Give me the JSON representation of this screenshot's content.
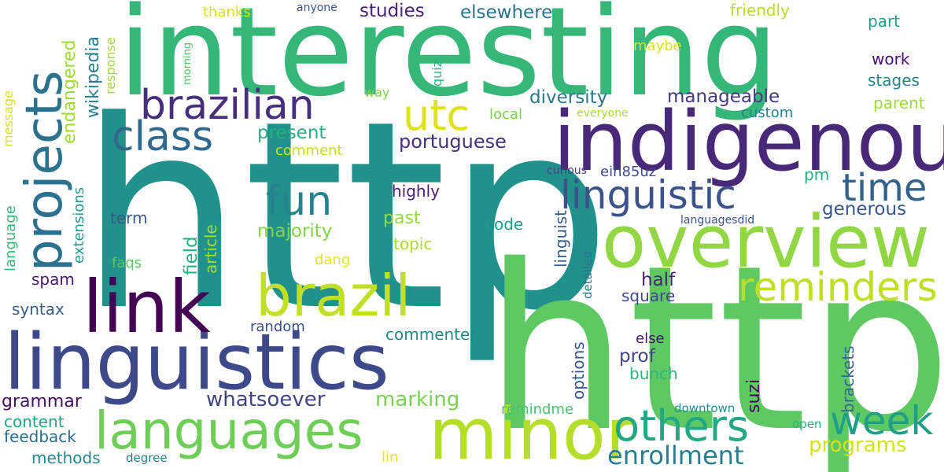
{
  "words": [
    {
      "text": "http",
      "color": "#21918c"
    },
    {
      "text": "https",
      "color": "#5ec962"
    },
    {
      "text": "interesting",
      "color": "#35b779"
    },
    {
      "text": "indigenous",
      "color": "#482878"
    },
    {
      "text": "linguistics",
      "color": "#3e4989"
    },
    {
      "text": "overview",
      "color": "#90d743"
    },
    {
      "text": "minor",
      "color": "#b5de2b"
    },
    {
      "text": "link",
      "color": "#440154"
    },
    {
      "text": "languages",
      "color": "#6ece58"
    },
    {
      "text": "brazil",
      "color": "#c2df23"
    },
    {
      "text": "projects",
      "color": "#2c728e"
    },
    {
      "text": "brazilian",
      "color": "#472f7d"
    },
    {
      "text": "others",
      "color": "#22a884"
    },
    {
      "text": "week",
      "color": "#1f9e89"
    },
    {
      "text": "reminders",
      "color": "#bddf26"
    },
    {
      "text": "class",
      "color": "#31688e"
    },
    {
      "text": "utc",
      "color": "#dde318"
    },
    {
      "text": "linguistic",
      "color": "#3b528b"
    },
    {
      "text": "time",
      "color": "#33638d"
    },
    {
      "text": "fun",
      "color": "#26828e"
    },
    {
      "text": "enrollment",
      "color": "#277f8e"
    },
    {
      "text": "programs",
      "color": "#d2e21b"
    },
    {
      "text": "whatsoever",
      "color": "#414487"
    },
    {
      "text": "marking",
      "color": "#7ad151"
    },
    {
      "text": "diversity",
      "color": "#2a788e"
    },
    {
      "text": "manageable",
      "color": "#443983"
    },
    {
      "text": "portuguese",
      "color": "#46327e"
    },
    {
      "text": "present",
      "color": "#29af7f"
    },
    {
      "text": "studies",
      "color": "#482475"
    },
    {
      "text": "elsewhere",
      "color": "#2d708e"
    },
    {
      "text": "wikipedia",
      "color": "#287c8e"
    },
    {
      "text": "endangered",
      "color": "#9fda3a"
    },
    {
      "text": "generous",
      "color": "#39568c"
    },
    {
      "text": "majority",
      "color": "#84d44b"
    },
    {
      "text": "half",
      "color": "#482173"
    },
    {
      "text": "square",
      "color": "#3f4788"
    },
    {
      "text": "linguist",
      "color": "#365d8d"
    },
    {
      "text": "commenter",
      "color": "#23888e"
    },
    {
      "text": "grammar",
      "color": "#471063"
    },
    {
      "text": "content",
      "color": "#20a386"
    },
    {
      "text": "feedback",
      "color": "#2e6e8e"
    },
    {
      "text": "methods",
      "color": "#25848e"
    },
    {
      "text": "syntax",
      "color": "#355f8d"
    },
    {
      "text": "spam",
      "color": "#481a6c"
    },
    {
      "text": "prof",
      "color": "#404688"
    },
    {
      "text": "suzi",
      "color": "#450457"
    },
    {
      "text": "bunch",
      "color": "#2fb47c"
    },
    {
      "text": "options",
      "color": "#3a548c"
    },
    {
      "text": "brackets",
      "color": "#31668e"
    },
    {
      "text": "term",
      "color": "#38598c"
    },
    {
      "text": "field",
      "color": "#2ab07f"
    },
    {
      "text": "article",
      "color": "#a8db34"
    },
    {
      "text": "past",
      "color": "#95d840"
    },
    {
      "text": "topic",
      "color": "#addc30"
    },
    {
      "text": "code",
      "color": "#1e9b8a"
    },
    {
      "text": "highly",
      "color": "#482071"
    },
    {
      "text": "work",
      "color": "#440f76"
    },
    {
      "text": "stages",
      "color": "#25858e"
    },
    {
      "text": "part",
      "color": "#1fa187"
    },
    {
      "text": "parent",
      "color": "#a0da39"
    },
    {
      "text": "custom",
      "color": "#26828e"
    },
    {
      "text": "local",
      "color": "#7cd250"
    },
    {
      "text": "comment",
      "color": "#c8e020"
    },
    {
      "text": "random",
      "color": "#3d4e8a"
    },
    {
      "text": "dang",
      "color": "#e5e419"
    },
    {
      "text": "faqs",
      "color": "#5cc863"
    },
    {
      "text": "extensions",
      "color": "#1f9a8a"
    },
    {
      "text": "language",
      "color": "#37b878"
    },
    {
      "text": "message",
      "color": "#d8e219"
    },
    {
      "text": "response",
      "color": "#a5db36"
    },
    {
      "text": "morning",
      "color": "#52c569"
    },
    {
      "text": "quiz",
      "color": "#2db27d"
    },
    {
      "text": "thanks",
      "color": "#d5e21a"
    },
    {
      "text": "anyone",
      "color": "#3b528b"
    },
    {
      "text": "friendly",
      "color": "#b8de29"
    },
    {
      "text": "maybe",
      "color": "#dae319"
    },
    {
      "text": "way",
      "color": "#7fd34e"
    },
    {
      "text": "everyone",
      "color": "#aadc32"
    },
    {
      "text": "eih85uz",
      "color": "#3e4c8a"
    },
    {
      "text": "curious",
      "color": "#423f85"
    },
    {
      "text": "pm",
      "color": "#26ad81"
    },
    {
      "text": "languagesdid",
      "color": "#3a538b"
    },
    {
      "text": "detailed",
      "color": "#2b748e"
    },
    {
      "text": "else",
      "color": "#481467"
    },
    {
      "text": "remindme",
      "color": "#4ac16d"
    },
    {
      "text": "downtown",
      "color": "#20928c"
    },
    {
      "text": "open",
      "color": "#2ab07f"
    },
    {
      "text": "lin",
      "color": "#e7e419"
    },
    {
      "text": "degree",
      "color": "#277f8e"
    }
  ]
}
